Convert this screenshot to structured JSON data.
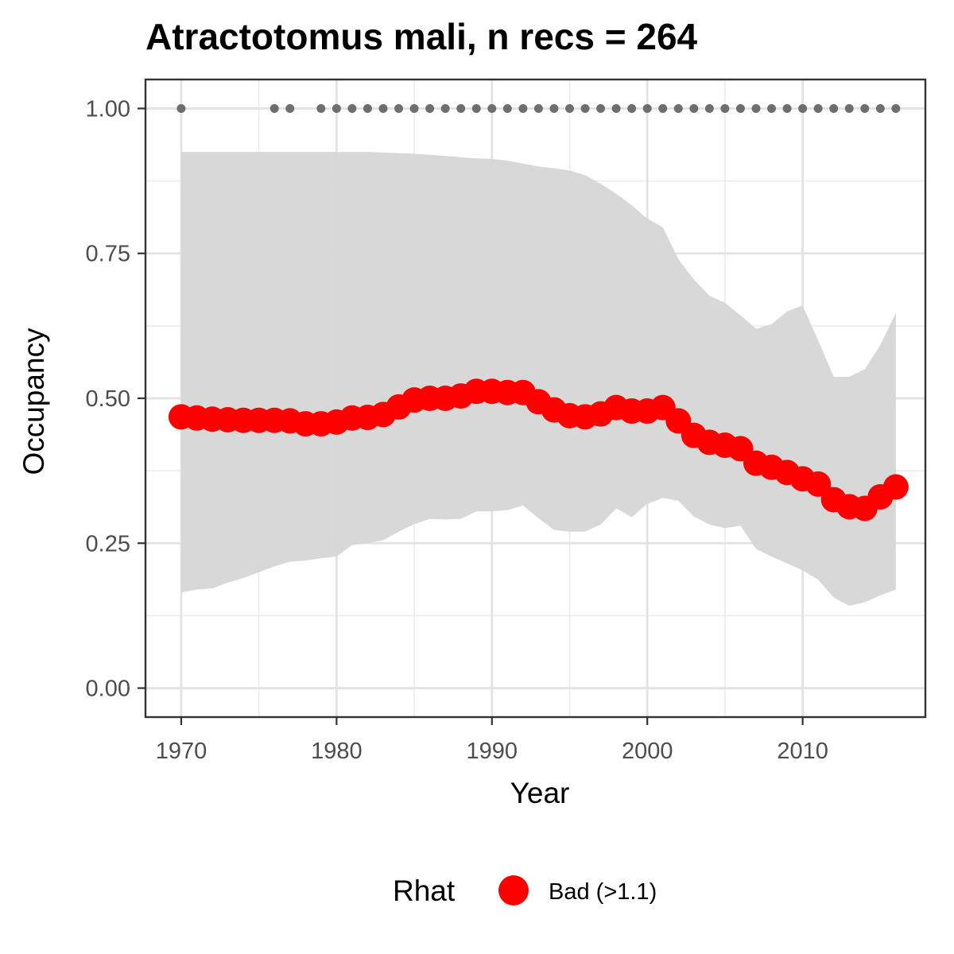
{
  "chart_data": {
    "type": "line",
    "title": "Atractotomus mali, n recs = 264",
    "xlabel": "Year",
    "ylabel": "Occupancy",
    "xlim": [
      1967.7,
      2017.9
    ],
    "ylim": [
      -0.05,
      1.05
    ],
    "x_ticks": [
      1970,
      1980,
      1990,
      2000,
      2010
    ],
    "y_ticks": [
      0.0,
      0.25,
      0.5,
      0.75,
      1.0
    ],
    "x_tick_labels": [
      "1970",
      "1980",
      "1990",
      "2000",
      "2010"
    ],
    "y_tick_labels": [
      "0.00",
      "0.25",
      "0.50",
      "0.75",
      "1.00"
    ],
    "grid": true,
    "series": [
      {
        "kind": "mean_occupancy",
        "color": "#ff0000",
        "x": [
          1970,
          1971,
          1972,
          1973,
          1974,
          1975,
          1976,
          1977,
          1978,
          1979,
          1980,
          1981,
          1982,
          1983,
          1984,
          1985,
          1986,
          1987,
          1988,
          1989,
          1990,
          1991,
          1992,
          1993,
          1994,
          1995,
          1996,
          1997,
          1998,
          1999,
          2000,
          2001,
          2002,
          2003,
          2004,
          2005,
          2006,
          2007,
          2008,
          2009,
          2010,
          2011,
          2012,
          2013,
          2014,
          2015,
          2016
        ],
        "y": [
          0.468,
          0.466,
          0.464,
          0.463,
          0.462,
          0.462,
          0.462,
          0.461,
          0.456,
          0.456,
          0.459,
          0.466,
          0.467,
          0.472,
          0.485,
          0.497,
          0.5,
          0.5,
          0.504,
          0.512,
          0.512,
          0.51,
          0.51,
          0.494,
          0.48,
          0.47,
          0.468,
          0.473,
          0.484,
          0.478,
          0.478,
          0.484,
          0.461,
          0.436,
          0.424,
          0.419,
          0.413,
          0.388,
          0.381,
          0.372,
          0.361,
          0.352,
          0.325,
          0.313,
          0.31,
          0.33,
          0.347
        ]
      },
      {
        "kind": "credible_interval",
        "color": "#d6d6d6",
        "x": [
          1970,
          1971,
          1972,
          1973,
          1974,
          1975,
          1976,
          1977,
          1978,
          1979,
          1980,
          1981,
          1982,
          1983,
          1984,
          1985,
          1986,
          1987,
          1988,
          1989,
          1990,
          1991,
          1992,
          1993,
          1994,
          1995,
          1996,
          1997,
          1998,
          1999,
          2000,
          2001,
          2002,
          2003,
          2004,
          2005,
          2006,
          2007,
          2008,
          2009,
          2010,
          2011,
          2012,
          2013,
          2014,
          2015,
          2016
        ],
        "lower": [
          0.165,
          0.17,
          0.172,
          0.182,
          0.19,
          0.2,
          0.21,
          0.218,
          0.22,
          0.224,
          0.227,
          0.247,
          0.25,
          0.255,
          0.27,
          0.283,
          0.292,
          0.291,
          0.292,
          0.305,
          0.305,
          0.307,
          0.315,
          0.293,
          0.273,
          0.27,
          0.27,
          0.282,
          0.31,
          0.295,
          0.318,
          0.328,
          0.323,
          0.296,
          0.282,
          0.276,
          0.28,
          0.24,
          0.227,
          0.215,
          0.203,
          0.187,
          0.156,
          0.142,
          0.148,
          0.16,
          0.17
        ],
        "upper": [
          0.925,
          0.925,
          0.925,
          0.925,
          0.925,
          0.925,
          0.925,
          0.925,
          0.925,
          0.925,
          0.925,
          0.925,
          0.925,
          0.924,
          0.923,
          0.922,
          0.92,
          0.918,
          0.916,
          0.914,
          0.913,
          0.91,
          0.905,
          0.9,
          0.897,
          0.893,
          0.885,
          0.87,
          0.853,
          0.833,
          0.81,
          0.795,
          0.74,
          0.705,
          0.677,
          0.665,
          0.643,
          0.62,
          0.628,
          0.65,
          0.66,
          0.6,
          0.537,
          0.537,
          0.55,
          0.592,
          0.647
        ]
      },
      {
        "kind": "record_years",
        "color": "#6e6e6e",
        "value": 1.0,
        "x": [
          1970,
          1976,
          1977,
          1979,
          1980,
          1981,
          1982,
          1983,
          1984,
          1985,
          1986,
          1987,
          1988,
          1989,
          1990,
          1991,
          1992,
          1993,
          1994,
          1995,
          1996,
          1997,
          1998,
          1999,
          2000,
          2001,
          2002,
          2003,
          2004,
          2005,
          2006,
          2007,
          2008,
          2009,
          2010,
          2011,
          2012,
          2013,
          2014,
          2015,
          2016
        ]
      }
    ],
    "legend": {
      "title": "Rhat",
      "placement": "bottom",
      "entries": [
        {
          "label": "Bad (>1.1)",
          "color": "#ff0000"
        }
      ]
    }
  }
}
